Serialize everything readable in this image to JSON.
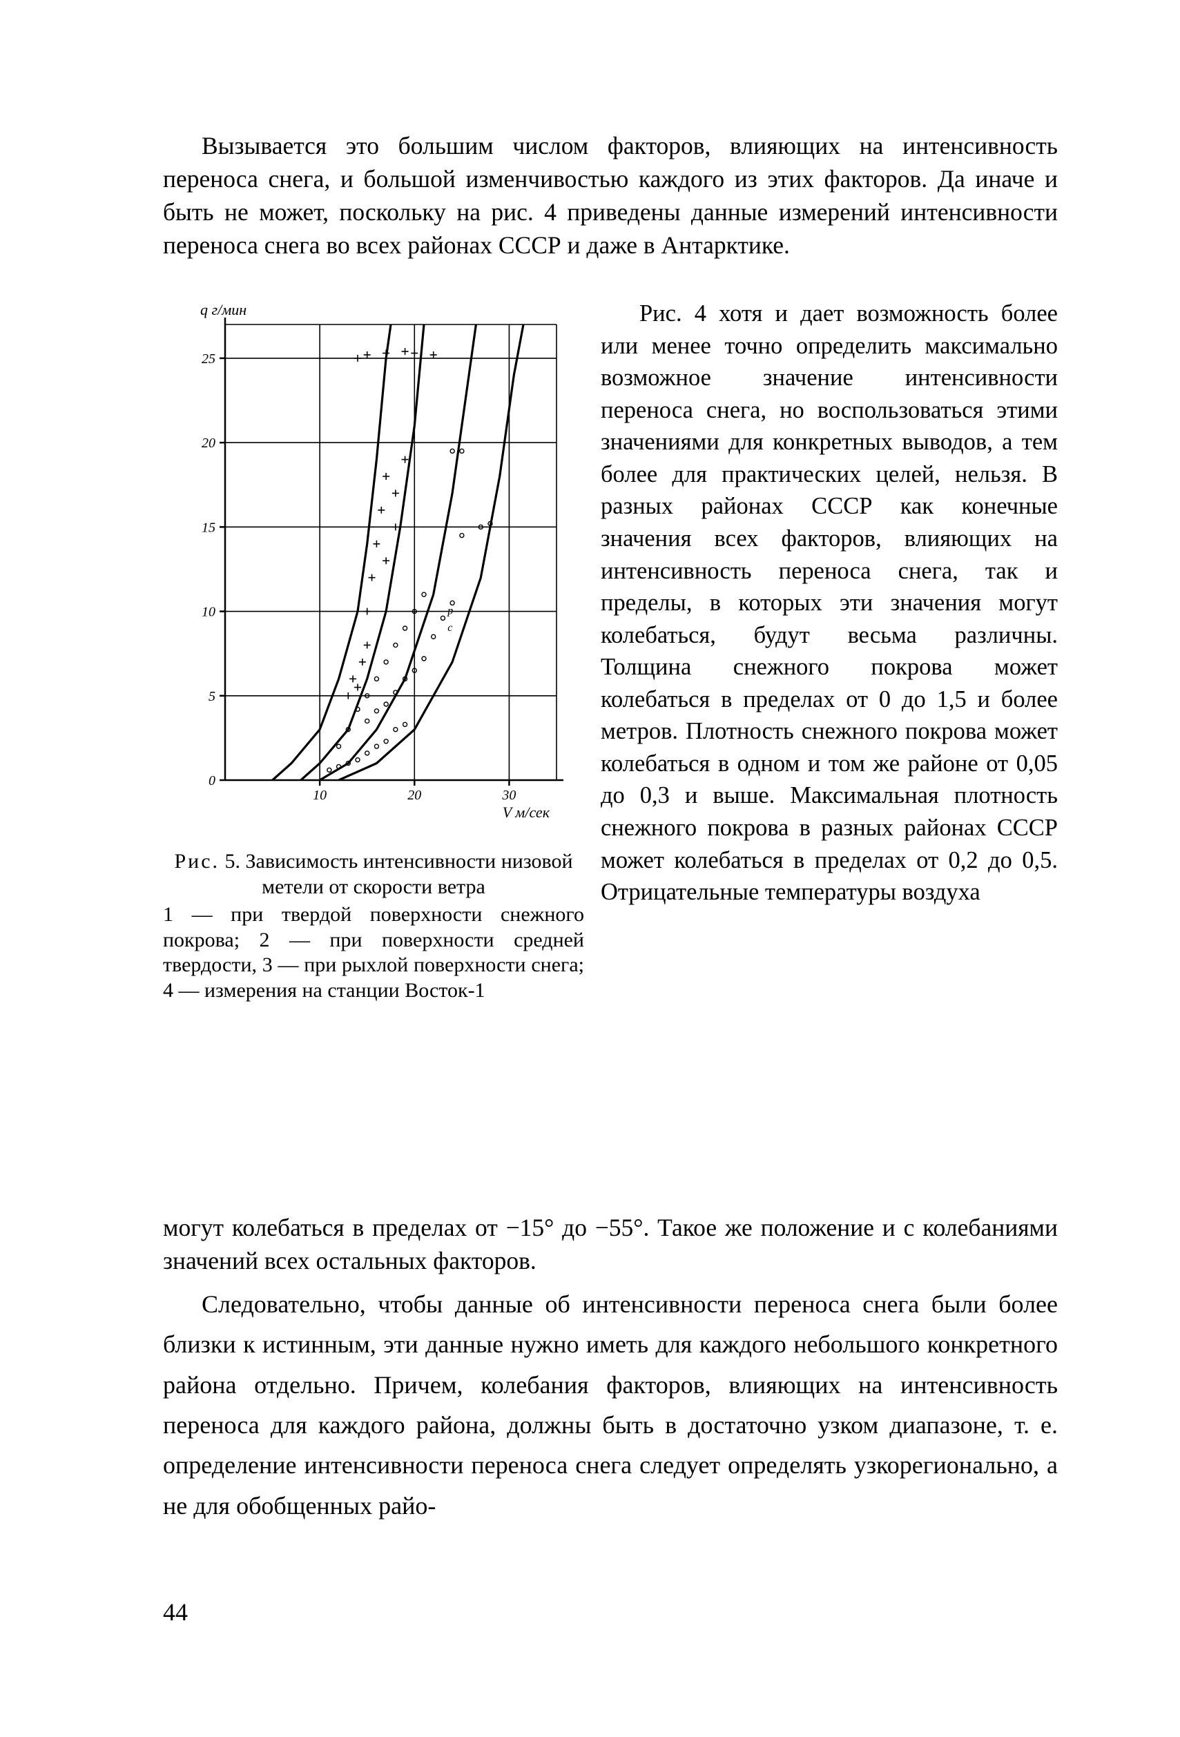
{
  "page_number": "44",
  "para1": "Вызывается это большим числом факторов, влияющих на интенсивность переноса снега, и большой изменчивостью каждого из этих факторов. Да иначе и быть не может, поскольку на рис. 4 приведены данные измерений интенсивности переноса снега во всех районах СССР и даже в Антарктике.",
  "right_col": "Рис. 4 хотя и дает возможность более или менее точно определить максимально возможное значение интенсивности переноса снега, но воспользоваться этими значениями для конкретных выводов, а тем более для практических целей, нельзя. В разных районах СССР как конечные значения всех факторов, влияющих на интенсивность переноса снега, так и пределы, в которых эти значения могут колебаться, будут весьма различны. Толщина снежного покрова может колебаться в пределах от 0 до 1,5 и более метров. Плотность снежного покрова может колебаться в одном и том же районе от 0,05 до 0,3 и выше. Максимальная плотность снежного покрова в разных районах СССР может колебаться в пределах от 0,2 до 0,5. Отрицательные температуры воздуха",
  "tail_para": "могут колебаться в пределах от −15° до −55°. Такое же положение и с колебаниями значений всех остальных факторов.",
  "last_para": "Следовательно, чтобы данные об интенсивности переноса снега были более близки к истинным, эти данные нужно иметь для каждого небольшого конкретного района отдельно. Причем, колебания факторов, влияющих на интенсивность переноса для каждого района, должны быть в достаточно узком диапазоне, т. е. определение интенсивности переноса снега следует определять узкорегионально, а не для обобщенных райо-",
  "caption_title_prefix": "Рис.",
  "caption_title_rest": " 5. Зависимость интенсивности низовой метели от скорости ветра",
  "caption_body": "1 — при твердой поверхности снежного покрова; 2 — при поверхности средней твердости, 3 — при рыхлой поверхности снега; 4 — измерения на станции Восток-1",
  "chart": {
    "type": "line+scatter",
    "background_color": "#ffffff",
    "grid_color": "#000000",
    "axis_color": "#000000",
    "curve_color": "#000000",
    "curve_width": 3.2,
    "grid_width": 1.6,
    "axis_width": 2.5,
    "x_axis_label": "V м/сек",
    "y_axis_label": "q г/мин",
    "xlim": [
      0,
      35
    ],
    "ylim": [
      0,
      27
    ],
    "x_ticks": [
      10,
      20,
      30
    ],
    "y_ticks": [
      0,
      5,
      10,
      15,
      20,
      25
    ],
    "x_gridlines": [
      10,
      20,
      30
    ],
    "y_gridlines": [
      5,
      10,
      15,
      20,
      25
    ],
    "tick_fontsize": 20,
    "label_fontsize": 22,
    "curves": [
      {
        "name": "curve-1",
        "points": [
          [
            5,
            0
          ],
          [
            7,
            1
          ],
          [
            10,
            3
          ],
          [
            12,
            6
          ],
          [
            14,
            10
          ],
          [
            15,
            14
          ],
          [
            16,
            19
          ],
          [
            17,
            25
          ],
          [
            17.5,
            27
          ]
        ]
      },
      {
        "name": "curve-2",
        "points": [
          [
            8,
            0
          ],
          [
            10,
            1
          ],
          [
            13,
            3
          ],
          [
            15,
            6
          ],
          [
            17,
            10
          ],
          [
            18.5,
            15
          ],
          [
            20,
            21
          ],
          [
            21,
            27
          ]
        ]
      },
      {
        "name": "curve-3",
        "points": [
          [
            10,
            0
          ],
          [
            13,
            1
          ],
          [
            16,
            3
          ],
          [
            19,
            6
          ],
          [
            22,
            11
          ],
          [
            24,
            17
          ],
          [
            25.5,
            23
          ],
          [
            26.5,
            27
          ]
        ]
      },
      {
        "name": "curve-4",
        "points": [
          [
            12,
            0
          ],
          [
            16,
            1
          ],
          [
            20,
            3
          ],
          [
            24,
            7
          ],
          [
            27,
            12
          ],
          [
            29,
            18
          ],
          [
            30.5,
            24
          ],
          [
            31.5,
            27
          ]
        ]
      }
    ],
    "scatter_circles": [
      [
        13,
        1
      ],
      [
        14,
        1.2
      ],
      [
        15,
        1.6
      ],
      [
        16,
        2
      ],
      [
        17,
        2.3
      ],
      [
        12,
        0.8
      ],
      [
        11,
        0.6
      ],
      [
        18,
        3
      ],
      [
        19,
        3.3
      ],
      [
        15,
        3.5
      ],
      [
        16,
        4.1
      ],
      [
        17,
        4.5
      ],
      [
        18,
        5.2
      ],
      [
        19,
        6
      ],
      [
        20,
        6.5
      ],
      [
        21,
        7.2
      ],
      [
        22,
        8.5
      ],
      [
        23,
        9.6
      ],
      [
        24,
        10.5
      ],
      [
        25,
        14.5
      ],
      [
        27,
        15
      ],
      [
        28,
        15.2
      ],
      [
        20,
        10
      ],
      [
        21,
        11
      ],
      [
        19,
        9
      ],
      [
        18,
        8
      ],
      [
        17,
        7
      ],
      [
        16,
        6
      ],
      [
        15,
        5
      ],
      [
        14,
        4.2
      ],
      [
        13,
        3
      ],
      [
        12,
        2
      ],
      [
        24,
        19.5
      ],
      [
        25,
        19.5
      ]
    ],
    "scatter_plus": [
      [
        13,
        5
      ],
      [
        13.5,
        6
      ],
      [
        14,
        5.5
      ],
      [
        14.5,
        7
      ],
      [
        15,
        8
      ],
      [
        15,
        10
      ],
      [
        15.5,
        12
      ],
      [
        16,
        14
      ],
      [
        16.5,
        16
      ],
      [
        17,
        18
      ],
      [
        14,
        25
      ],
      [
        15,
        25.2
      ],
      [
        17,
        25.3
      ],
      [
        19,
        25.4
      ],
      [
        20,
        25.3
      ],
      [
        22,
        25.2
      ],
      [
        18,
        15
      ],
      [
        17,
        13
      ],
      [
        18,
        17
      ],
      [
        19,
        19
      ]
    ],
    "marker_radius": 3.0,
    "plus_halflen": 5
  }
}
